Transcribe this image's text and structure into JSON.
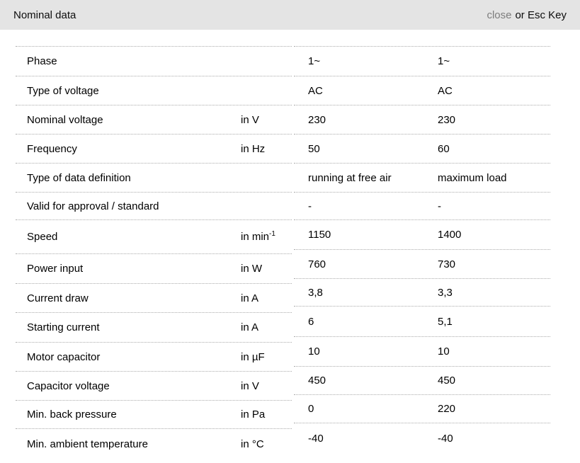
{
  "header": {
    "title": "Nominal data",
    "close_label": "close",
    "close_suffix": "or Esc Key"
  },
  "colors": {
    "header_bg": "#e4e4e4",
    "close_link": "#7d7d7d",
    "separator": "#ababab",
    "text": "#000000"
  },
  "table": {
    "rows": [
      {
        "label": "Phase",
        "unit": "",
        "unit_sup": "",
        "v1": "1~",
        "v2": "1~"
      },
      {
        "label": "Type of voltage",
        "unit": "",
        "unit_sup": "",
        "v1": "AC",
        "v2": "AC"
      },
      {
        "label": "Nominal voltage",
        "unit": "in V",
        "unit_sup": "",
        "v1": "230",
        "v2": "230"
      },
      {
        "label": "Frequency",
        "unit": "in Hz",
        "unit_sup": "",
        "v1": "50",
        "v2": "60"
      },
      {
        "label": "Type of data definition",
        "unit": "",
        "unit_sup": "",
        "v1": "running at free air",
        "v2": "maximum load"
      },
      {
        "label": "Valid for approval / standard",
        "unit": "",
        "unit_sup": "",
        "v1": "-",
        "v2": "-"
      },
      {
        "label": "Speed",
        "unit": "in min",
        "unit_sup": "-1",
        "v1": "1150",
        "v2": "1400"
      },
      {
        "label": "Power input",
        "unit": "in W",
        "unit_sup": "",
        "v1": "760",
        "v2": "730"
      },
      {
        "label": "Current draw",
        "unit": "in A",
        "unit_sup": "",
        "v1": "3,8",
        "v2": "3,3"
      },
      {
        "label": "Starting current",
        "unit": "in A",
        "unit_sup": "",
        "v1": "6",
        "v2": "5,1"
      },
      {
        "label": "Motor capacitor",
        "unit": "in µF",
        "unit_sup": "",
        "v1": "10",
        "v2": "10"
      },
      {
        "label": "Capacitor voltage",
        "unit": "in V",
        "unit_sup": "",
        "v1": "450",
        "v2": "450"
      },
      {
        "label": "Min. back pressure",
        "unit": "in Pa",
        "unit_sup": "",
        "v1": "0",
        "v2": "220"
      },
      {
        "label": "Min. ambient temperature",
        "unit": "in °C",
        "unit_sup": "",
        "v1": "-40",
        "v2": "-40"
      }
    ]
  }
}
